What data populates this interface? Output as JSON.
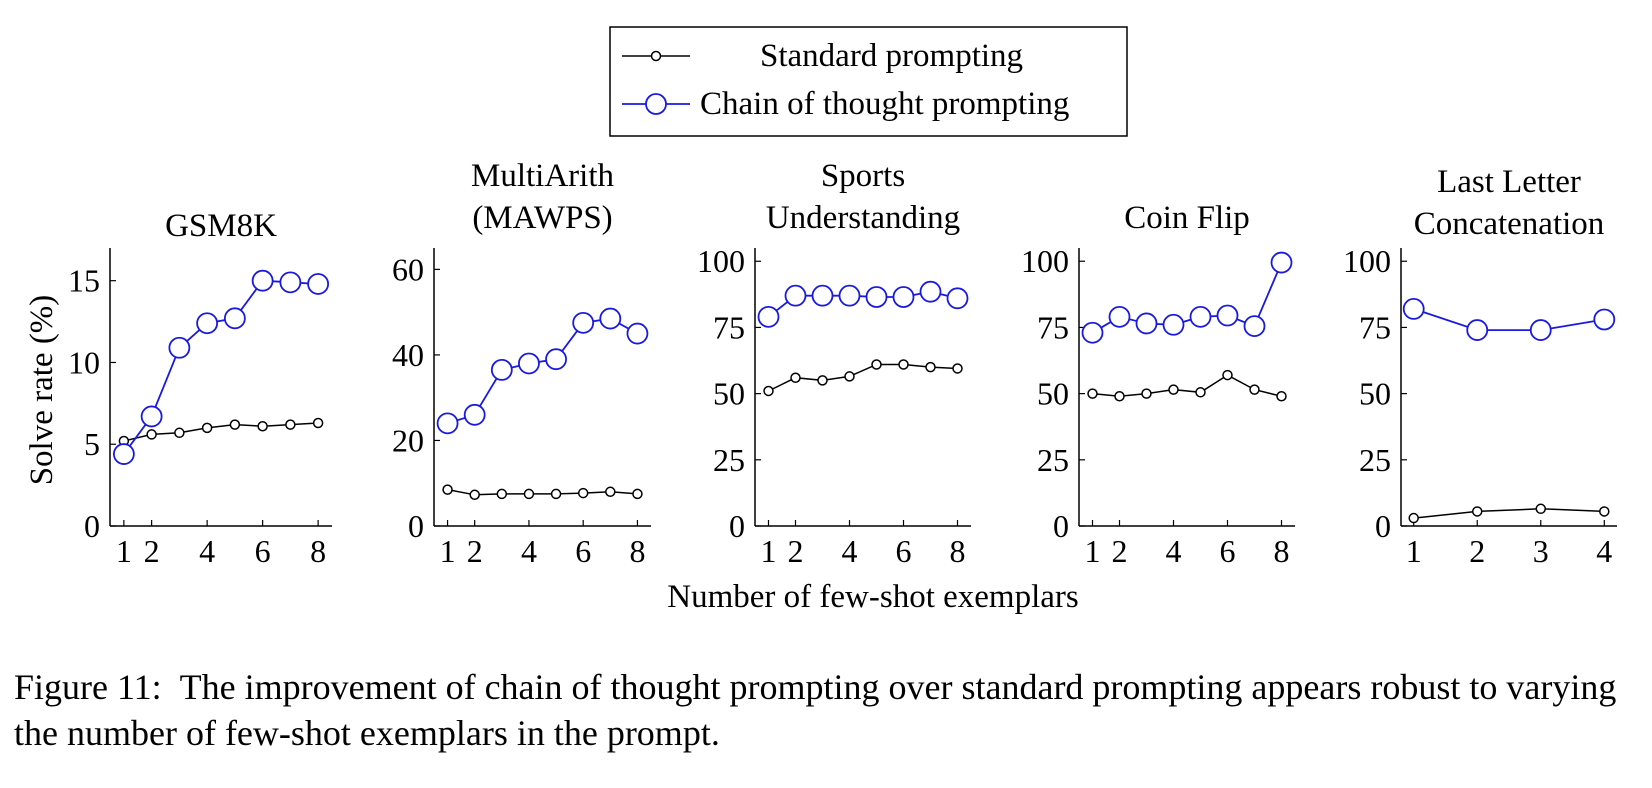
{
  "legend": {
    "standard_label": "Standard prompting",
    "cot_label": "Chain of thought prompting"
  },
  "xlabel": "Number of few-shot exemplars",
  "ylabel": "Solve rate (%)",
  "caption": "Figure 11: The improvement of chain of thought prompting over standard prompting appears robust to varying the number of few-shot exemplars in the prompt.",
  "colors": {
    "standard": "#000000",
    "cot": "#1a1adf"
  },
  "chart_data": [
    {
      "type": "line",
      "title": "GSM8K",
      "ylabel": "Solve rate (%)",
      "ylim": [
        0,
        17
      ],
      "yticks": [
        0,
        5,
        10,
        15
      ],
      "xlim": [
        0.5,
        8.5
      ],
      "xticks": [
        1,
        2,
        4,
        6,
        8
      ],
      "x": [
        1,
        2,
        3,
        4,
        5,
        6,
        7,
        8
      ],
      "series": [
        {
          "name": "Standard prompting",
          "values": [
            5.2,
            5.6,
            5.7,
            6.0,
            6.2,
            6.1,
            6.2,
            6.3
          ]
        },
        {
          "name": "Chain of thought prompting",
          "values": [
            4.4,
            6.7,
            10.9,
            12.4,
            12.7,
            15.0,
            14.9,
            14.8
          ]
        }
      ]
    },
    {
      "type": "line",
      "title": "MultiArith (MAWPS)",
      "ylim": [
        0,
        65
      ],
      "yticks": [
        0,
        20,
        40,
        60
      ],
      "xlim": [
        0.5,
        8.5
      ],
      "xticks": [
        1,
        2,
        4,
        6,
        8
      ],
      "x": [
        1,
        2,
        3,
        4,
        5,
        6,
        7,
        8
      ],
      "series": [
        {
          "name": "Standard prompting",
          "values": [
            8.5,
            7.3,
            7.5,
            7.5,
            7.5,
            7.7,
            8.0,
            7.5
          ]
        },
        {
          "name": "Chain of thought prompting",
          "values": [
            24.0,
            26.0,
            36.5,
            38.0,
            39.0,
            47.5,
            48.5,
            45.0
          ]
        }
      ]
    },
    {
      "type": "line",
      "title": "Sports Understanding",
      "ylim": [
        0,
        105
      ],
      "yticks": [
        0,
        25,
        50,
        75,
        100
      ],
      "xlim": [
        0.5,
        8.5
      ],
      "xticks": [
        1,
        2,
        4,
        6,
        8
      ],
      "x": [
        1,
        2,
        3,
        4,
        5,
        6,
        7,
        8
      ],
      "series": [
        {
          "name": "Standard prompting",
          "values": [
            51.0,
            56.0,
            55.0,
            56.5,
            61.0,
            61.0,
            60.0,
            59.5
          ]
        },
        {
          "name": "Chain of thought prompting",
          "values": [
            79.0,
            87.0,
            87.0,
            87.0,
            86.5,
            86.5,
            88.5,
            86.0
          ]
        }
      ]
    },
    {
      "type": "line",
      "title": "Coin Flip",
      "ylim": [
        0,
        105
      ],
      "yticks": [
        0,
        25,
        50,
        75,
        100
      ],
      "xlim": [
        0.5,
        8.5
      ],
      "xticks": [
        1,
        2,
        4,
        6,
        8
      ],
      "x": [
        1,
        2,
        3,
        4,
        5,
        6,
        7,
        8
      ],
      "series": [
        {
          "name": "Standard prompting",
          "values": [
            50.0,
            49.0,
            50.0,
            51.5,
            50.5,
            57.0,
            51.5,
            49.0
          ]
        },
        {
          "name": "Chain of thought prompting",
          "values": [
            73.0,
            79.0,
            76.5,
            76.0,
            79.0,
            79.5,
            75.5,
            99.5
          ]
        }
      ]
    },
    {
      "type": "line",
      "title": "Last Letter Concatenation",
      "ylim": [
        0,
        105
      ],
      "yticks": [
        0,
        25,
        50,
        75,
        100
      ],
      "xlim": [
        0.8,
        4.2
      ],
      "xticks": [
        1,
        2,
        3,
        4
      ],
      "x": [
        1,
        2,
        3,
        4
      ],
      "series": [
        {
          "name": "Standard prompting",
          "values": [
            3.0,
            5.5,
            6.5,
            5.5
          ]
        },
        {
          "name": "Chain of thought prompting",
          "values": [
            82.0,
            74.0,
            74.0,
            78.0
          ]
        }
      ]
    }
  ]
}
